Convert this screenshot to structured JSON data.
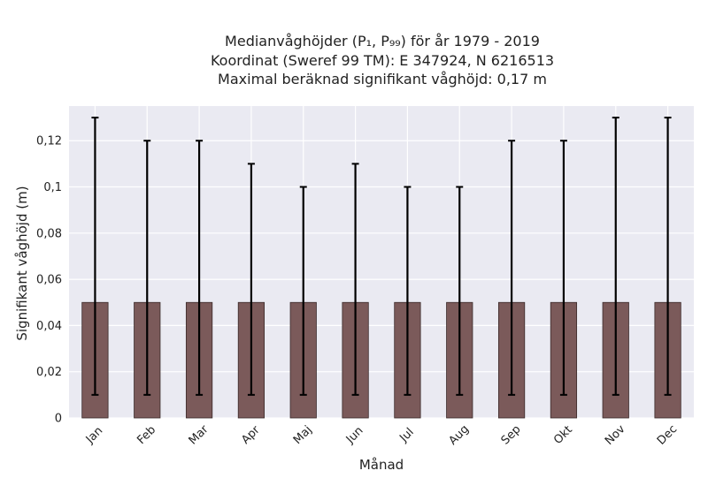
{
  "chart_data": {
    "type": "bar",
    "title_lines": [
      "Medianvåghöjder (P₁, P₉₉) för år 1979 - 2019",
      "Koordinat (Sweref 99 TM): E 347924, N 6216513",
      "Maximal beräknad signifikant våghöjd: 0,17 m"
    ],
    "xlabel": "Månad",
    "ylabel": "Signifikant våghöjd (m)",
    "categories": [
      "Jan",
      "Feb",
      "Mar",
      "Apr",
      "Maj",
      "Jun",
      "Jul",
      "Aug",
      "Sep",
      "Okt",
      "Nov",
      "Dec"
    ],
    "values": [
      0.05,
      0.05,
      0.05,
      0.05,
      0.05,
      0.05,
      0.05,
      0.05,
      0.05,
      0.05,
      0.05,
      0.05
    ],
    "error_low": [
      0.01,
      0.01,
      0.01,
      0.01,
      0.01,
      0.01,
      0.01,
      0.01,
      0.01,
      0.01,
      0.01,
      0.01
    ],
    "error_high": [
      0.13,
      0.12,
      0.12,
      0.11,
      0.1,
      0.11,
      0.1,
      0.1,
      0.12,
      0.12,
      0.13,
      0.13
    ],
    "ylim": [
      0,
      0.135
    ],
    "yticks": [
      0,
      0.02,
      0.04,
      0.06,
      0.08,
      0.1,
      0.12
    ],
    "ytick_labels": [
      "0",
      "0,02",
      "0,04",
      "0,06",
      "0,08",
      "0,1",
      "0,12"
    ],
    "grid": true,
    "bar_color": "#7b5a5a",
    "bar_edge_color": "#3a2a2a",
    "plot_bg": "#eaeaf2",
    "errorbar_color": "#000000"
  }
}
